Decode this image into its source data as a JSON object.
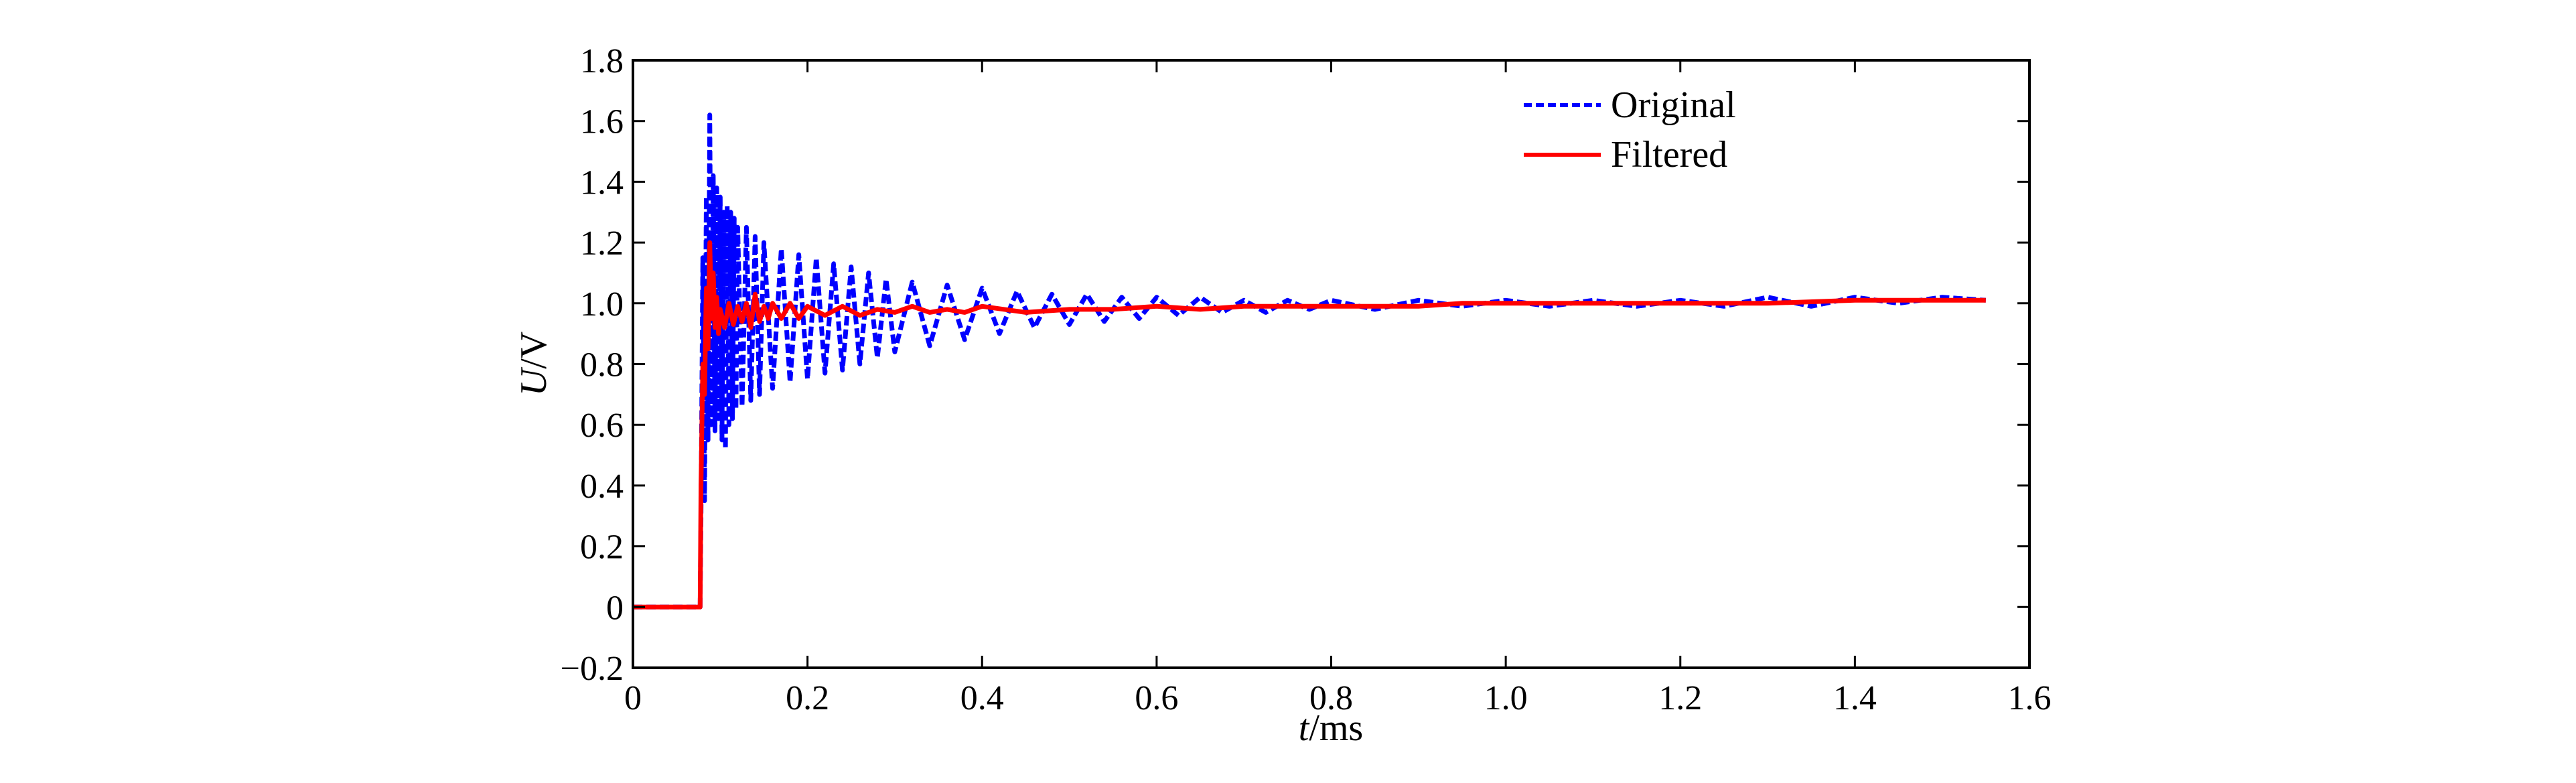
{
  "chart_data": {
    "type": "line",
    "xlabel": {
      "italic": "t",
      "rest": "/ms"
    },
    "ylabel": {
      "italic": "U",
      "rest": "/V"
    },
    "xlim": [
      0,
      1.6
    ],
    "ylim": [
      -0.2,
      1.8
    ],
    "xticks": [
      0,
      0.2,
      0.4,
      0.6,
      0.8,
      1.0,
      1.2,
      1.4,
      1.6
    ],
    "xtick_labels": [
      "0",
      "0.2",
      "0.4",
      "0.6",
      "0.8",
      "1.0",
      "1.2",
      "1.4",
      "1.6"
    ],
    "yticks": [
      -0.2,
      0,
      0.2,
      0.4,
      0.6,
      0.8,
      1.0,
      1.2,
      1.4,
      1.6,
      1.8
    ],
    "ytick_labels": [
      "−0.2",
      "0",
      "0.2",
      "0.4",
      "0.6",
      "0.8",
      "1.0",
      "1.2",
      "1.4",
      "1.6",
      "1.8"
    ],
    "grid": false,
    "legend_position": "top-right",
    "series": [
      {
        "name": "Original",
        "color": "#0000ff",
        "style": "dashed",
        "x": [
          0,
          0.077,
          0.078,
          0.08,
          0.082,
          0.084,
          0.086,
          0.088,
          0.09,
          0.092,
          0.094,
          0.096,
          0.098,
          0.1,
          0.102,
          0.104,
          0.106,
          0.108,
          0.11,
          0.112,
          0.114,
          0.116,
          0.118,
          0.12,
          0.125,
          0.13,
          0.135,
          0.14,
          0.145,
          0.15,
          0.16,
          0.17,
          0.18,
          0.19,
          0.2,
          0.21,
          0.22,
          0.23,
          0.24,
          0.25,
          0.26,
          0.27,
          0.28,
          0.29,
          0.3,
          0.32,
          0.34,
          0.36,
          0.38,
          0.4,
          0.42,
          0.44,
          0.46,
          0.48,
          0.5,
          0.52,
          0.54,
          0.56,
          0.58,
          0.6,
          0.625,
          0.65,
          0.675,
          0.7,
          0.725,
          0.75,
          0.775,
          0.8,
          0.85,
          0.9,
          0.95,
          1.0,
          1.05,
          1.1,
          1.15,
          1.2,
          1.25,
          1.3,
          1.35,
          1.4,
          1.45,
          1.5,
          1.55
        ],
        "y": [
          0,
          0,
          0.3,
          1.15,
          0.35,
          1.35,
          0.55,
          1.62,
          0.6,
          1.42,
          0.58,
          1.38,
          0.62,
          1.35,
          0.55,
          1.3,
          0.52,
          1.32,
          0.6,
          1.3,
          0.62,
          1.28,
          0.65,
          1.25,
          0.66,
          1.25,
          0.68,
          1.22,
          0.7,
          1.2,
          0.72,
          1.18,
          0.74,
          1.16,
          0.75,
          1.15,
          0.77,
          1.13,
          0.78,
          1.12,
          0.8,
          1.1,
          0.82,
          1.08,
          0.84,
          1.07,
          0.86,
          1.06,
          0.88,
          1.05,
          0.9,
          1.04,
          0.92,
          1.03,
          0.93,
          1.03,
          0.94,
          1.02,
          0.95,
          1.02,
          0.96,
          1.02,
          0.97,
          1.01,
          0.97,
          1.01,
          0.98,
          1.01,
          0.98,
          1.01,
          0.99,
          1.01,
          0.99,
          1.01,
          0.99,
          1.01,
          0.99,
          1.02,
          0.99,
          1.02,
          1.0,
          1.02,
          1.01
        ]
      },
      {
        "name": "Filtered",
        "color": "#ff0000",
        "style": "solid",
        "x": [
          0,
          0.077,
          0.078,
          0.08,
          0.082,
          0.084,
          0.086,
          0.088,
          0.09,
          0.092,
          0.094,
          0.096,
          0.098,
          0.1,
          0.105,
          0.11,
          0.115,
          0.12,
          0.125,
          0.13,
          0.135,
          0.14,
          0.145,
          0.15,
          0.155,
          0.16,
          0.17,
          0.18,
          0.19,
          0.2,
          0.22,
          0.24,
          0.26,
          0.28,
          0.3,
          0.32,
          0.34,
          0.36,
          0.38,
          0.4,
          0.45,
          0.5,
          0.55,
          0.6,
          0.65,
          0.7,
          0.75,
          0.8,
          0.85,
          0.9,
          0.95,
          1.0,
          1.1,
          1.2,
          1.3,
          1.4,
          1.5,
          1.55
        ],
        "y": [
          0,
          0,
          0.4,
          0.8,
          0.7,
          1.05,
          0.85,
          1.2,
          0.95,
          1.1,
          0.92,
          1.02,
          0.9,
          0.98,
          0.92,
          1.0,
          0.93,
          0.99,
          0.94,
          1.0,
          0.92,
          1.03,
          0.94,
          0.99,
          0.95,
          1.0,
          0.95,
          1.0,
          0.95,
          0.99,
          0.96,
          0.99,
          0.96,
          0.98,
          0.97,
          0.99,
          0.97,
          0.98,
          0.97,
          0.99,
          0.97,
          0.98,
          0.98,
          0.99,
          0.98,
          0.99,
          0.99,
          0.99,
          0.99,
          0.99,
          1.0,
          1.0,
          1.0,
          1.0,
          1.0,
          1.01,
          1.01,
          1.01
        ]
      }
    ]
  }
}
